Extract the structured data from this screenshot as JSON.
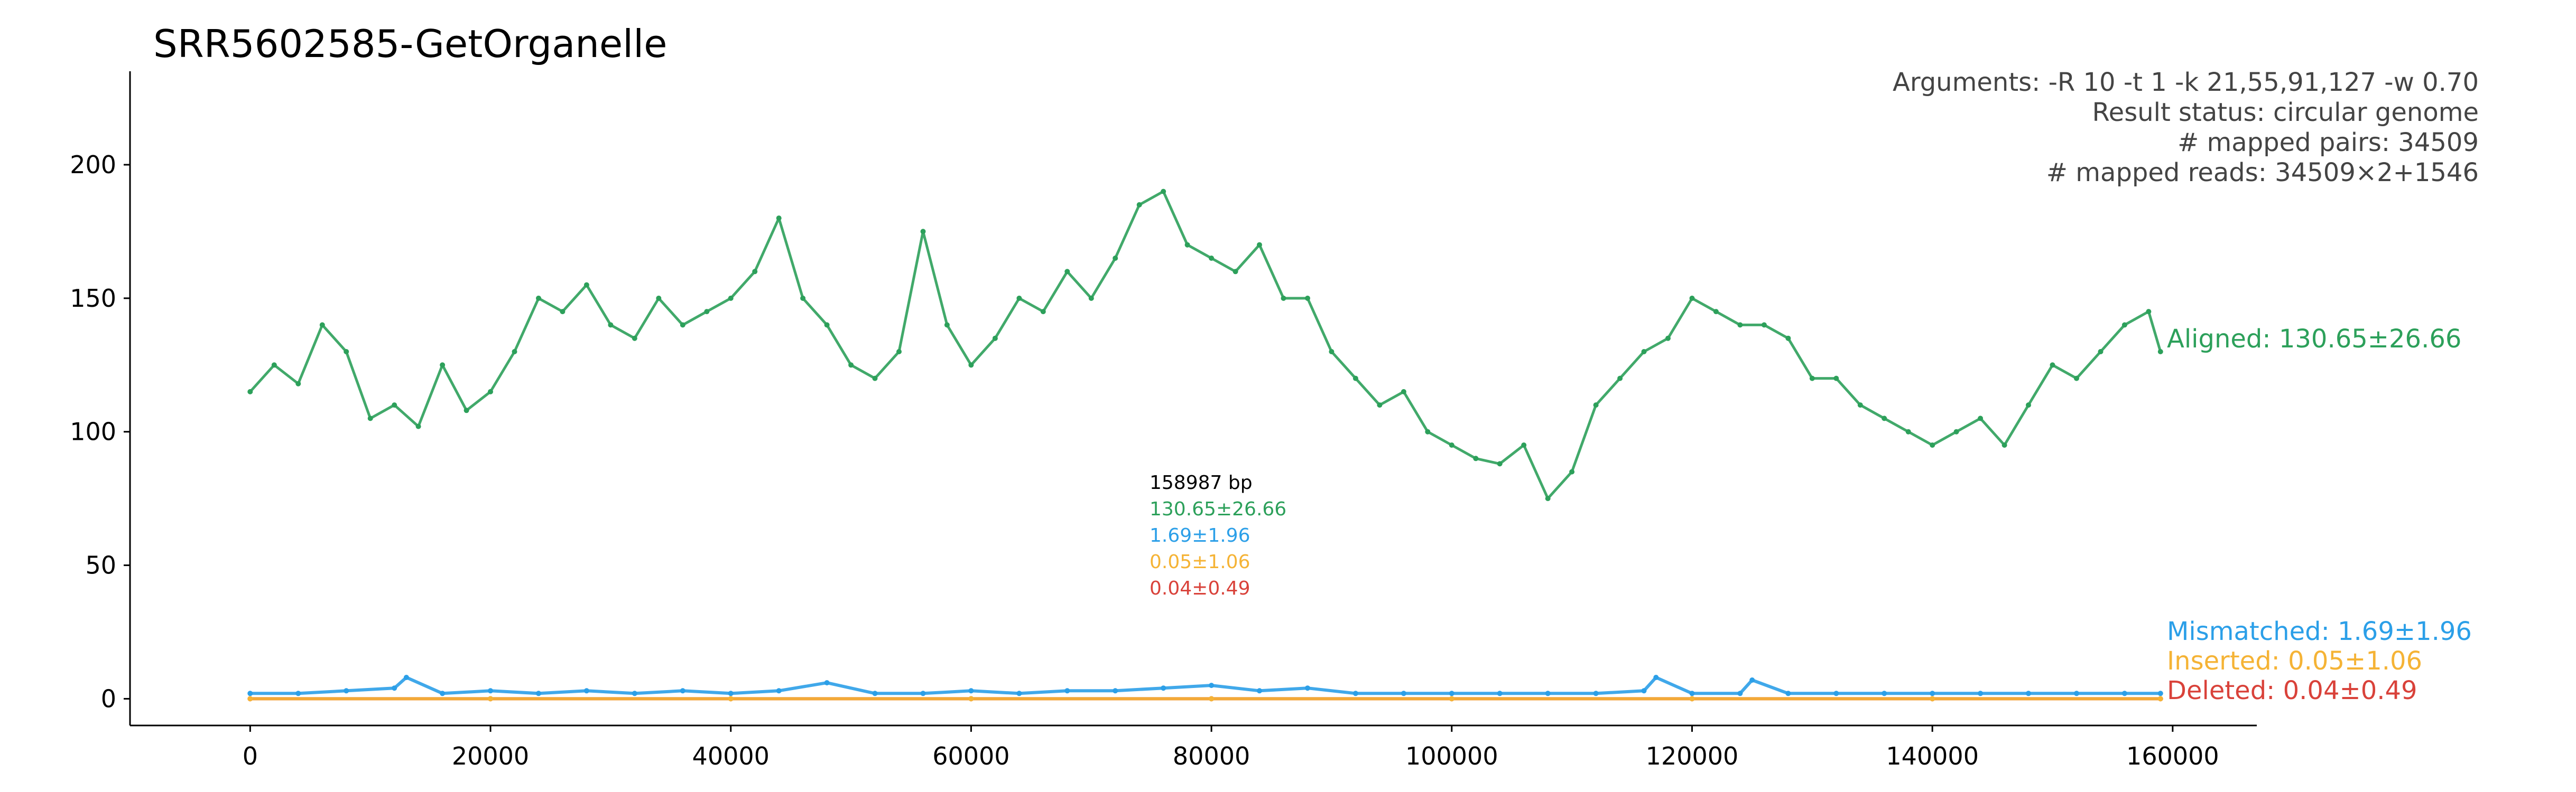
{
  "chart_data": {
    "type": "scatter",
    "title": "SRR5602585-GetOrganelle",
    "xlabel": "",
    "ylabel": "",
    "xlim": [
      -10000,
      167000
    ],
    "ylim": [
      -10,
      235
    ],
    "x_ticks": [
      0,
      20000,
      40000,
      60000,
      80000,
      100000,
      120000,
      140000,
      160000
    ],
    "x_tick_labels": [
      "0",
      "20000",
      "40000",
      "60000",
      "80000",
      "100000",
      "120000",
      "140000",
      "160000"
    ],
    "y_ticks": [
      0,
      50,
      100,
      150,
      200
    ],
    "y_tick_labels": [
      "0",
      "50",
      "100",
      "150",
      "200"
    ],
    "grid": false,
    "info_lines": [
      "Arguments: -R 10 -t 1 -k 21,55,91,127 -w 0.70",
      "Result status: circular genome",
      "# mapped pairs: 34509",
      "# mapped reads: 34509×2+1546"
    ],
    "stats_box": {
      "length": "158987 bp",
      "aligned": "130.65±26.66",
      "mismatched": "1.69±1.96",
      "inserted": "0.05±1.06",
      "deleted": "0.04±0.49"
    },
    "series": [
      {
        "name": "Aligned: 130.65±26.66",
        "color": "#2ca05a",
        "x": [
          0,
          2000,
          4000,
          6000,
          8000,
          10000,
          12000,
          14000,
          16000,
          18000,
          20000,
          22000,
          24000,
          26000,
          28000,
          30000,
          32000,
          34000,
          36000,
          38000,
          40000,
          42000,
          44000,
          46000,
          48000,
          50000,
          52000,
          54000,
          56000,
          58000,
          60000,
          62000,
          64000,
          66000,
          68000,
          70000,
          72000,
          74000,
          76000,
          78000,
          80000,
          82000,
          84000,
          86000,
          88000,
          90000,
          92000,
          94000,
          96000,
          98000,
          100000,
          102000,
          104000,
          106000,
          108000,
          110000,
          112000,
          114000,
          116000,
          118000,
          120000,
          122000,
          124000,
          126000,
          128000,
          130000,
          132000,
          134000,
          136000,
          138000,
          140000,
          142000,
          144000,
          146000,
          148000,
          150000,
          152000,
          154000,
          156000,
          158000,
          158987
        ],
        "y": [
          115,
          125,
          118,
          140,
          130,
          105,
          110,
          102,
          125,
          108,
          115,
          130,
          150,
          145,
          155,
          140,
          135,
          150,
          140,
          145,
          150,
          160,
          180,
          150,
          140,
          125,
          120,
          130,
          175,
          140,
          125,
          135,
          150,
          145,
          160,
          150,
          165,
          185,
          190,
          170,
          165,
          160,
          170,
          150,
          150,
          130,
          120,
          110,
          115,
          100,
          95,
          90,
          88,
          95,
          75,
          85,
          110,
          120,
          130,
          135,
          150,
          145,
          140,
          140,
          135,
          120,
          120,
          110,
          105,
          100,
          95,
          100,
          105,
          95,
          110,
          125,
          120,
          130,
          140,
          145,
          130
        ]
      },
      {
        "name": "Mismatched: 1.69±1.96",
        "color": "#2b9fe8",
        "x": [
          0,
          4000,
          8000,
          12000,
          13000,
          16000,
          20000,
          24000,
          28000,
          32000,
          36000,
          40000,
          44000,
          48000,
          52000,
          56000,
          60000,
          64000,
          68000,
          72000,
          76000,
          80000,
          84000,
          88000,
          92000,
          96000,
          100000,
          104000,
          108000,
          112000,
          116000,
          117000,
          120000,
          124000,
          125000,
          128000,
          132000,
          136000,
          140000,
          144000,
          148000,
          152000,
          156000,
          158987
        ],
        "y": [
          2,
          2,
          3,
          4,
          8,
          2,
          3,
          2,
          3,
          2,
          3,
          2,
          3,
          6,
          2,
          2,
          3,
          2,
          3,
          3,
          4,
          5,
          3,
          4,
          2,
          2,
          2,
          2,
          2,
          2,
          3,
          8,
          2,
          2,
          7,
          2,
          2,
          2,
          2,
          2,
          2,
          2,
          2,
          2
        ]
      },
      {
        "name": "Inserted: 0.05±1.06",
        "color": "#f5b335",
        "x": [
          0,
          20000,
          40000,
          60000,
          80000,
          100000,
          120000,
          140000,
          158987
        ],
        "y": [
          0,
          0,
          0,
          0,
          0,
          0,
          0,
          0,
          0
        ]
      },
      {
        "name": "Deleted: 0.04±0.49",
        "color": "#d9423a",
        "x": [
          0,
          20000,
          40000,
          60000,
          80000,
          100000,
          120000,
          140000,
          158987
        ],
        "y": [
          0,
          0,
          0,
          0,
          0,
          0,
          0,
          0,
          0
        ]
      }
    ]
  }
}
